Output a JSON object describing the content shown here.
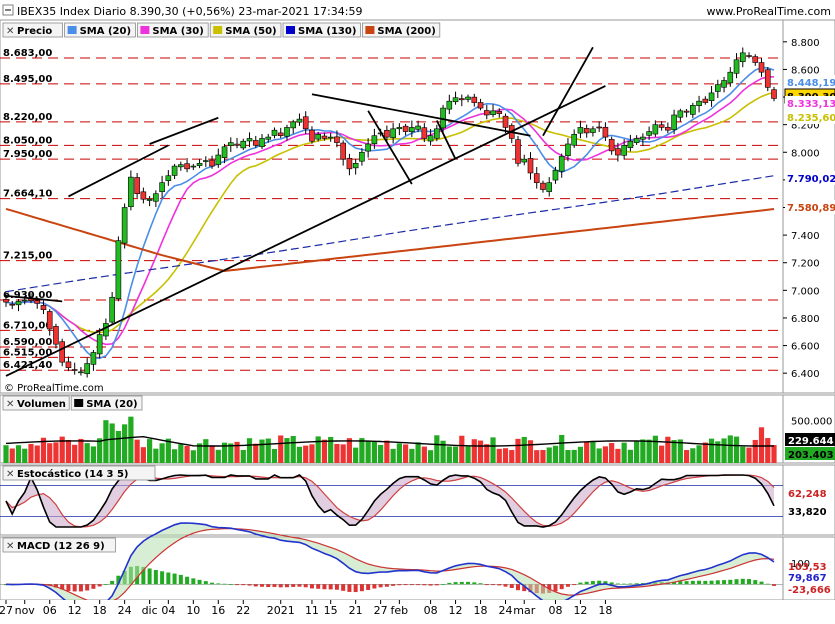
{
  "header": {
    "title": "IBEX35 Index Diario 8.390,30 (+0,56%) 23-mar-2021 17:34:59",
    "site": "www.ProRealTime.com",
    "watermark": "© ProRealTime.com"
  },
  "price_legend": [
    {
      "label": "Precio",
      "color": "#000000",
      "icon": "close-icon"
    },
    {
      "label": "SMA (20)",
      "color": "#4b8ee8"
    },
    {
      "label": "SMA (30)",
      "color": "#ee33dd"
    },
    {
      "label": "SMA (50)",
      "color": "#c8c000"
    },
    {
      "label": "SMA (130)",
      "color": "#0000c8"
    },
    {
      "label": "SMA (200)",
      "color": "#c84410"
    }
  ],
  "volume_legend": [
    {
      "label": "Volumen",
      "color": "#000000",
      "icon": "close-icon"
    },
    {
      "label": "SMA (20)",
      "color": "#000000"
    }
  ],
  "stoch_legend": [
    {
      "label": "Estocástico (14 3 5)",
      "color": "#000000",
      "icon": "close-icon"
    }
  ],
  "macd_legend": [
    {
      "label": "MACD (12 26 9)",
      "color": "#000000",
      "icon": "close-icon"
    }
  ],
  "chart_data": [
    {
      "type": "candlestick",
      "title": "IBEX35 Index Diario",
      "ylim": [
        6300,
        8900
      ],
      "yticks_right": [
        "8.800",
        "8.600",
        "8.400",
        "8.200",
        "8.000",
        "7.800",
        "7.600",
        "7.400",
        "7.200",
        "7.000",
        "6.800",
        "6.600",
        "6.400"
      ],
      "resistance_levels": [
        {
          "value": 8683,
          "label": "8.683,00"
        },
        {
          "value": 8495,
          "label": "8.495,00"
        },
        {
          "value": 8220,
          "label": "8.220,00"
        },
        {
          "value": 8050,
          "label": "8.050,00"
        },
        {
          "value": 7950,
          "label": "7.950,00"
        },
        {
          "value": 7664.1,
          "label": "7.664,10"
        },
        {
          "value": 7215,
          "label": "7.215,00"
        },
        {
          "value": 6930,
          "label": "6.930,00"
        },
        {
          "value": 6710,
          "label": "6.710,00"
        },
        {
          "value": 6590,
          "label": "6.590,00"
        },
        {
          "value": 6515,
          "label": "6.515,00"
        },
        {
          "value": 6421.4,
          "label": "6.421,40"
        }
      ],
      "last_values": [
        {
          "label": "8.448,19",
          "value": 8448.19,
          "color": "#4b8ee8"
        },
        {
          "label": "8.390,30",
          "value": 8390.3,
          "color": "#ffd700",
          "text_color": "#000000"
        },
        {
          "label": "8.333,13",
          "value": 8333.13,
          "color": "#ee33dd"
        },
        {
          "label": "8.235,60",
          "value": 8235.6,
          "color": "#c8c000"
        },
        {
          "label": "7.790,02",
          "value": 7790.02,
          "color": "#0000c8"
        },
        {
          "label": "7.580,89",
          "value": 7580.89,
          "color": "#c84410"
        }
      ],
      "candles_close": [
        6915,
        6895,
        6920,
        6930,
        6925,
        6905,
        6860,
        6720,
        6610,
        6480,
        6440,
        6420,
        6410,
        6470,
        6550,
        6680,
        6760,
        6950,
        7360,
        7600,
        7820,
        7700,
        7660,
        7660,
        7700,
        7780,
        7830,
        7900,
        7910,
        7880,
        7900,
        7920,
        7940,
        7900,
        7980,
        8040,
        8070,
        8050,
        8080,
        8100,
        8050,
        8100,
        8110,
        8160,
        8120,
        8180,
        8220,
        8240,
        8170,
        8080,
        8130,
        8100,
        8110,
        8070,
        7950,
        7880,
        7920,
        8000,
        8060,
        8120,
        8140,
        8110,
        8170,
        8180,
        8150,
        8180,
        8190,
        8100,
        8120,
        8170,
        8320,
        8370,
        8395,
        8380,
        8400,
        8360,
        8320,
        8270,
        8300,
        8280,
        8180,
        8100,
        7920,
        7950,
        7850,
        7780,
        7730,
        7780,
        7870,
        7970,
        8060,
        8130,
        8180,
        8140,
        8170,
        8180,
        8110,
        8010,
        7980,
        8050,
        8080,
        8100,
        8110,
        8150,
        8200,
        8180,
        8160,
        8270,
        8300,
        8290,
        8340,
        8370,
        8360,
        8430,
        8490,
        8520,
        8580,
        8670,
        8720,
        8700,
        8650,
        8580,
        8470,
        8390
      ]
    },
    {
      "type": "bar",
      "title": "Volumen",
      "series_name": "Volumen",
      "ylim": [
        0,
        800000
      ],
      "yticks_right": [
        "500.000"
      ],
      "last_values": [
        {
          "label": "229.644",
          "color": "#000000",
          "text_color": "#ffffff"
        },
        {
          "label": "203.403",
          "color": "#22aa22",
          "text_color": "#000000"
        }
      ]
    },
    {
      "type": "line",
      "title": "Estocástico (14 3 5)",
      "ylim": [
        0,
        100
      ],
      "bands": [
        80,
        20
      ],
      "last_values": [
        {
          "label": "62,248",
          "color": "#cc2222",
          "text_color": "#cc2222"
        },
        {
          "label": "33,820",
          "color": "#000000",
          "text_color": "#000000"
        }
      ]
    },
    {
      "type": "line",
      "title": "MACD (12 26 9)",
      "ylim": [
        -60,
        200
      ],
      "yticks_right": [
        "100"
      ],
      "last_values": [
        {
          "label": "103,53",
          "color": "#cc2222",
          "text_color": "#cc2222"
        },
        {
          "label": "79,867",
          "color": "#2222cc",
          "text_color": "#2222cc"
        },
        {
          "label": "-23,666",
          "color": "#cc2222",
          "text_color": "#cc2222"
        }
      ]
    }
  ],
  "x_axis_labels": [
    {
      "label": "27",
      "i": 0
    },
    {
      "label": "nov",
      "i": 3
    },
    {
      "label": "06",
      "i": 7
    },
    {
      "label": "12",
      "i": 11
    },
    {
      "label": "18",
      "i": 15
    },
    {
      "label": "24",
      "i": 19
    },
    {
      "label": "dic",
      "i": 23
    },
    {
      "label": "04",
      "i": 26
    },
    {
      "label": "10",
      "i": 30
    },
    {
      "label": "16",
      "i": 34
    },
    {
      "label": "22",
      "i": 38
    },
    {
      "label": "2021",
      "i": 44
    },
    {
      "label": "11",
      "i": 49
    },
    {
      "label": "15",
      "i": 52
    },
    {
      "label": "21",
      "i": 56
    },
    {
      "label": "27",
      "i": 60
    },
    {
      "label": "feb",
      "i": 63
    },
    {
      "label": "08",
      "i": 68
    },
    {
      "label": "12",
      "i": 72
    },
    {
      "label": "18",
      "i": 76
    },
    {
      "label": "24",
      "i": 80
    },
    {
      "label": "mar",
      "i": 83
    },
    {
      "label": "08",
      "i": 88
    },
    {
      "label": "12",
      "i": 92
    },
    {
      "label": "18",
      "i": 96
    }
  ]
}
